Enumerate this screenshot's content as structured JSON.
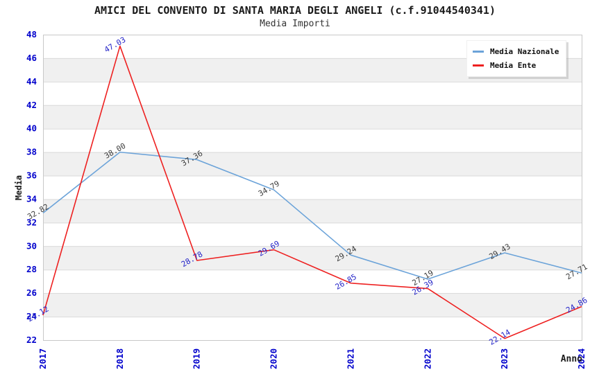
{
  "header": {
    "title": "AMICI DEL CONVENTO DI SANTA MARIA DEGLI ANGELI (c.f.91044540341)",
    "subtitle": "Media Importi"
  },
  "chart_data": {
    "type": "line",
    "categories": [
      "2017",
      "2018",
      "2019",
      "2020",
      "2021",
      "2022",
      "2023",
      "2024"
    ],
    "series": [
      {
        "name": "Media Nazionale",
        "color": "#6ba3d9",
        "label_color": "#3c3c3c",
        "values": [
          32.82,
          38.0,
          37.36,
          34.79,
          29.24,
          27.19,
          29.43,
          27.71
        ]
      },
      {
        "name": "Media Ente",
        "color": "#ee2020",
        "label_color": "#2424c8",
        "values": [
          24.12,
          47.03,
          28.78,
          29.69,
          26.85,
          26.39,
          22.14,
          24.86
        ]
      }
    ],
    "xlabel": "Anno",
    "ylabel": "Media",
    "ylim": [
      22,
      48
    ],
    "ytick_step": 2,
    "grid": true,
    "legend_position": "top-right",
    "colors": {
      "axis_text": "#0000cc",
      "grid": "#d9d9d9",
      "band": "#f0f0f0",
      "plot_border": "#c8c8c8",
      "title": "#1a1a1a"
    }
  }
}
